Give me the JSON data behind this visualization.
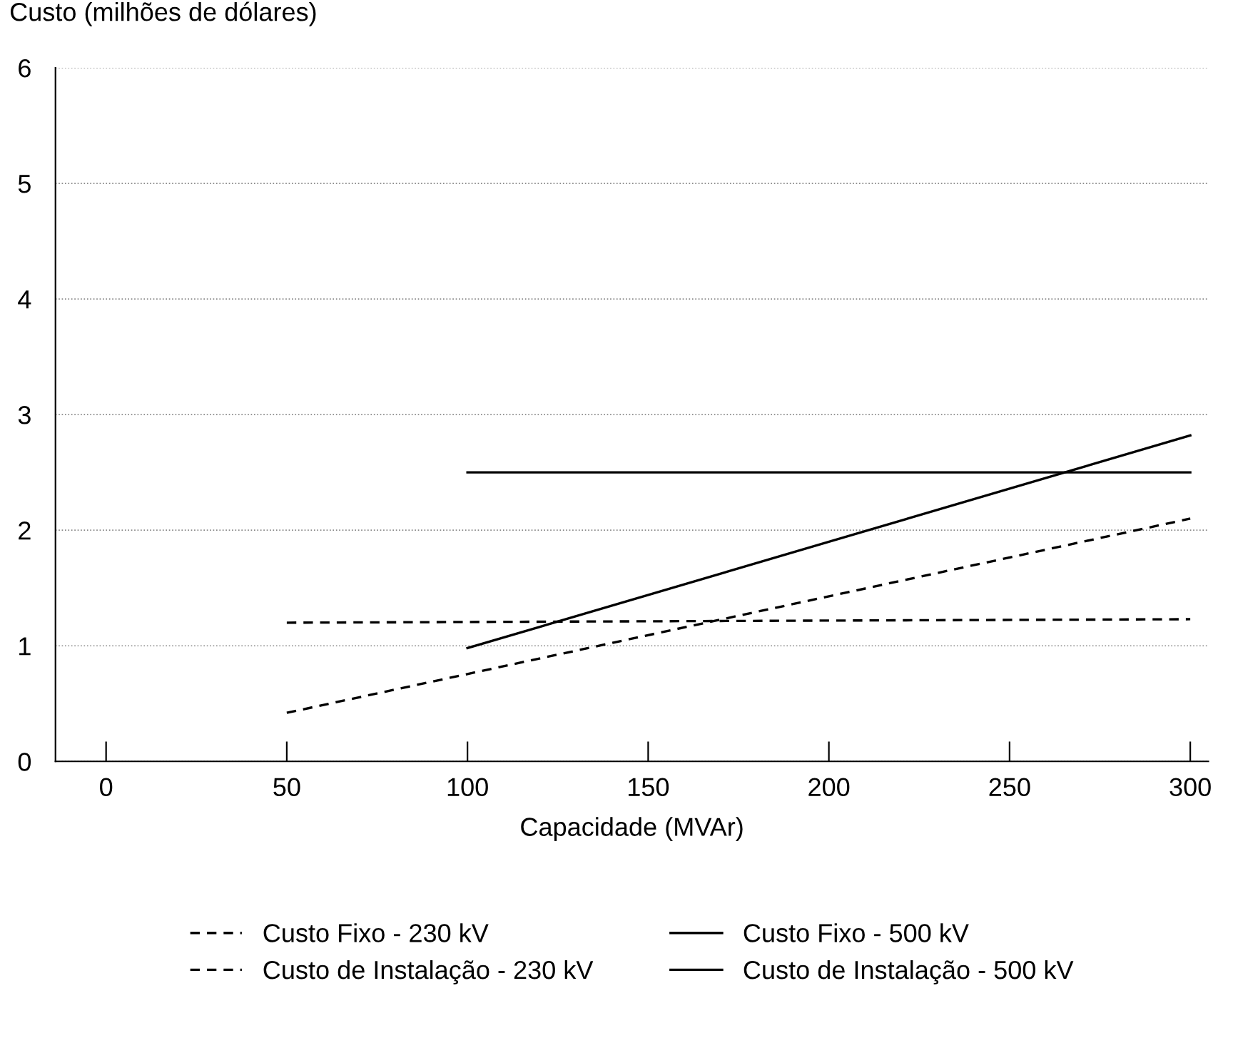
{
  "chart_data": {
    "type": "line",
    "ylabel": "Custo (milhões de dólares)",
    "xlabel": "Capacidade (MVAr)",
    "xlim": [
      -14,
      305
    ],
    "xticks": [
      0,
      50,
      100,
      150,
      200,
      250,
      300
    ],
    "ylim": [
      0,
      6
    ],
    "yticks": [
      0,
      1,
      2,
      3,
      4,
      5,
      6
    ],
    "grid": "y",
    "legend": "bottom",
    "marker": "none",
    "series": [
      {
        "name": "Custo Fixo - 230 kV",
        "color": "#000000",
        "line_style": "dashed",
        "x": [
          50,
          300
        ],
        "values": [
          1.2,
          1.23
        ]
      },
      {
        "name": "Custo de Instalação - 230 kV",
        "color": "#000000",
        "line_style": "dashed",
        "x": [
          50,
          300
        ],
        "values": [
          0.42,
          2.1
        ]
      },
      {
        "name": "Custo Fixo - 500 kV",
        "color": "#000000",
        "line_style": "solid",
        "x": [
          100,
          300
        ],
        "values": [
          2.5,
          2.5
        ]
      },
      {
        "name": "Custo de Instalação - 500 kV",
        "color": "#000000",
        "line_style": "solid",
        "x": [
          100,
          300
        ],
        "values": [
          0.98,
          2.82
        ]
      }
    ]
  }
}
